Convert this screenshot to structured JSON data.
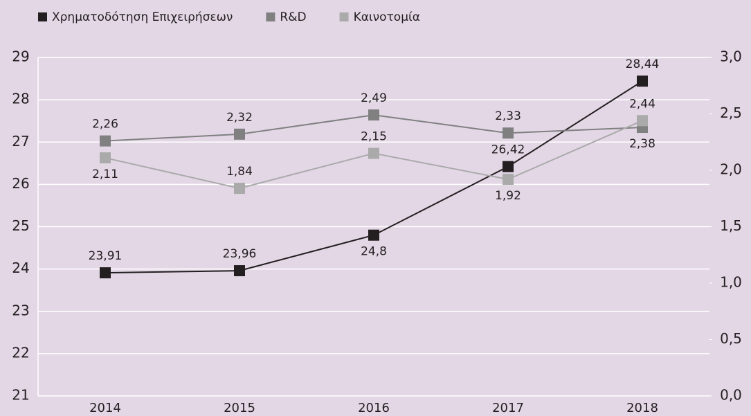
{
  "chart_data": {
    "type": "line",
    "categories": [
      "2014",
      "2015",
      "2016",
      "2017",
      "2018"
    ],
    "series": [
      {
        "name": "Χρηματοδότηση Επιχειρήσεων",
        "color": "#231f20",
        "values": [
          23.91,
          23.96,
          24.8,
          26.42,
          28.44
        ],
        "value_labels": [
          "23,91",
          "23,96",
          "24,8",
          "26,42",
          "28,44"
        ]
      },
      {
        "name": "R&D",
        "color": "#808080",
        "axis": "y2",
        "values": [
          2.26,
          2.32,
          2.49,
          2.33,
          2.38
        ],
        "value_labels": [
          "2,26",
          "2,32",
          "2,49",
          "2,33",
          "2,38"
        ]
      },
      {
        "name": "Καινοτομία",
        "color": "#aaaaaa",
        "axis": "y2",
        "values": [
          2.11,
          1.84,
          2.15,
          1.92,
          2.44
        ],
        "value_labels": [
          "2,11",
          "1,84",
          "2,15",
          "1,92",
          "2,44"
        ]
      }
    ],
    "ylim": [
      21,
      29
    ],
    "yticks": [
      21,
      22,
      23,
      24,
      25,
      26,
      27,
      28,
      29
    ],
    "y2lim": [
      0,
      3
    ],
    "y2ticks": [
      {
        "value": 0,
        "label": "0,0"
      },
      {
        "value": 0.5,
        "label": "0,5"
      },
      {
        "value": 1,
        "label": "1,0"
      },
      {
        "value": 1.5,
        "label": "1,5"
      },
      {
        "value": 2,
        "label": "2,0"
      },
      {
        "value": 2.5,
        "label": "2,5"
      },
      {
        "value": 3,
        "label": "3,0"
      }
    ],
    "grid": true,
    "legend": "top-left"
  }
}
